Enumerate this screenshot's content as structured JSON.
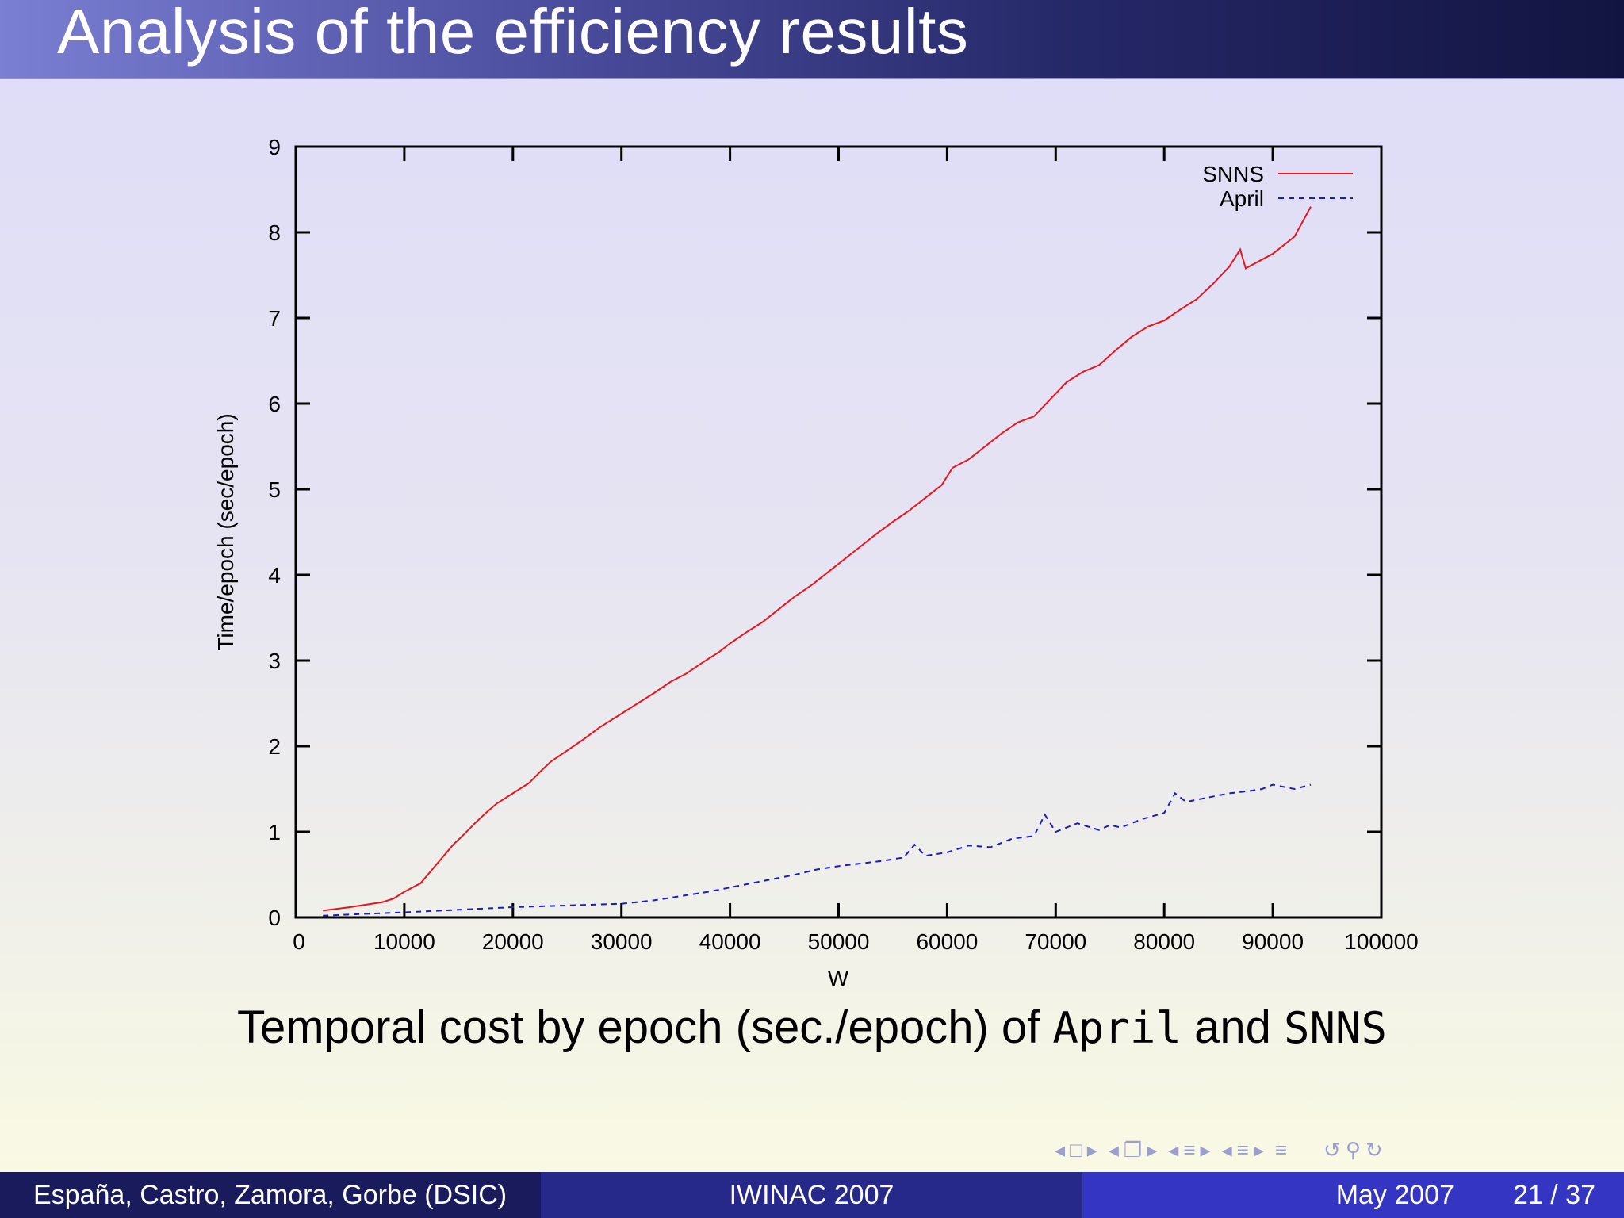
{
  "slide": {
    "title": "Analysis of the efficiency results",
    "caption_prefix": "Temporal cost by epoch (sec./epoch) of ",
    "caption_code1": "April",
    "caption_and": " and ",
    "caption_code2": "SNNS"
  },
  "footer": {
    "authors": "España, Castro, Zamora, Gorbe  (DSIC)",
    "conference": "IWINAC 2007",
    "date": "May 2007",
    "page": "21 / 37"
  },
  "nav_icons": [
    "arrow-left-icon",
    "frame-icon",
    "arrow-right-icon",
    "arrow-left-icon",
    "subsection-icon",
    "arrow-right-icon",
    "arrow-left-icon",
    "section-icon",
    "arrow-right-icon",
    "arrow-left-icon",
    "section-icon",
    "arrow-right-icon",
    "toc-icon",
    "undo-icon",
    "search-icon",
    "redo-icon"
  ],
  "chart_data": {
    "type": "line",
    "xlabel": "W",
    "ylabel": "Time/epoch (sec/epoch)",
    "xlim": [
      0,
      100000
    ],
    "ylim": [
      0,
      9
    ],
    "xticks": [
      0,
      10000,
      20000,
      30000,
      40000,
      50000,
      60000,
      70000,
      80000,
      90000,
      100000
    ],
    "yticks": [
      0,
      1,
      2,
      3,
      4,
      5,
      6,
      7,
      8,
      9
    ],
    "legend_position": "top-right",
    "grid": false,
    "series": [
      {
        "name": "SNNS",
        "color": "#e8141e",
        "style": "solid",
        "x": [
          2500,
          5000,
          8000,
          9000,
          10000,
          11500,
          12500,
          13500,
          14500,
          15500,
          16500,
          17500,
          18500,
          20000,
          21500,
          22500,
          23500,
          25000,
          26500,
          28000,
          30000,
          31500,
          33000,
          34500,
          36000,
          37500,
          39000,
          40000,
          41500,
          43000,
          44500,
          46000,
          47500,
          49000,
          50500,
          52000,
          53500,
          55000,
          56500,
          58000,
          59500,
          60500,
          62000,
          63500,
          65000,
          66500,
          68000,
          69500,
          71000,
          72500,
          74000,
          75500,
          77000,
          78500,
          80000,
          81500,
          83000,
          84500,
          86000,
          87000,
          87500,
          90000,
          92000,
          93500
        ],
        "y": [
          0.08,
          0.12,
          0.18,
          0.22,
          0.3,
          0.4,
          0.55,
          0.7,
          0.85,
          0.97,
          1.1,
          1.22,
          1.33,
          1.45,
          1.57,
          1.7,
          1.82,
          1.95,
          2.08,
          2.22,
          2.38,
          2.5,
          2.62,
          2.75,
          2.85,
          2.98,
          3.1,
          3.2,
          3.33,
          3.45,
          3.6,
          3.75,
          3.88,
          4.03,
          4.18,
          4.33,
          4.48,
          4.62,
          4.75,
          4.9,
          5.05,
          5.25,
          5.35,
          5.5,
          5.65,
          5.78,
          5.85,
          6.05,
          6.25,
          6.37,
          6.45,
          6.62,
          6.78,
          6.9,
          6.97,
          7.1,
          7.22,
          7.4,
          7.6,
          7.8,
          7.58,
          7.75,
          7.95,
          8.3
        ]
      },
      {
        "name": "April",
        "color": "#1a1ac8",
        "style": "dashed",
        "x": [
          2500,
          6000,
          10000,
          15000,
          20000,
          25000,
          30000,
          33000,
          36000,
          38000,
          40000,
          42000,
          44000,
          46000,
          48000,
          50000,
          52000,
          54000,
          56000,
          57000,
          58000,
          60000,
          62000,
          64000,
          66000,
          68000,
          69000,
          70000,
          72000,
          74000,
          75000,
          76000,
          78000,
          80000,
          81000,
          82000,
          84000,
          86000,
          88000,
          89000,
          90000,
          92000,
          93500
        ],
        "y": [
          0.02,
          0.04,
          0.06,
          0.09,
          0.12,
          0.14,
          0.16,
          0.2,
          0.26,
          0.3,
          0.35,
          0.4,
          0.45,
          0.5,
          0.56,
          0.6,
          0.63,
          0.66,
          0.7,
          0.85,
          0.72,
          0.76,
          0.84,
          0.82,
          0.92,
          0.95,
          1.2,
          1.0,
          1.1,
          1.02,
          1.08,
          1.05,
          1.15,
          1.22,
          1.45,
          1.35,
          1.4,
          1.45,
          1.48,
          1.5,
          1.55,
          1.5,
          1.55
        ]
      }
    ]
  }
}
